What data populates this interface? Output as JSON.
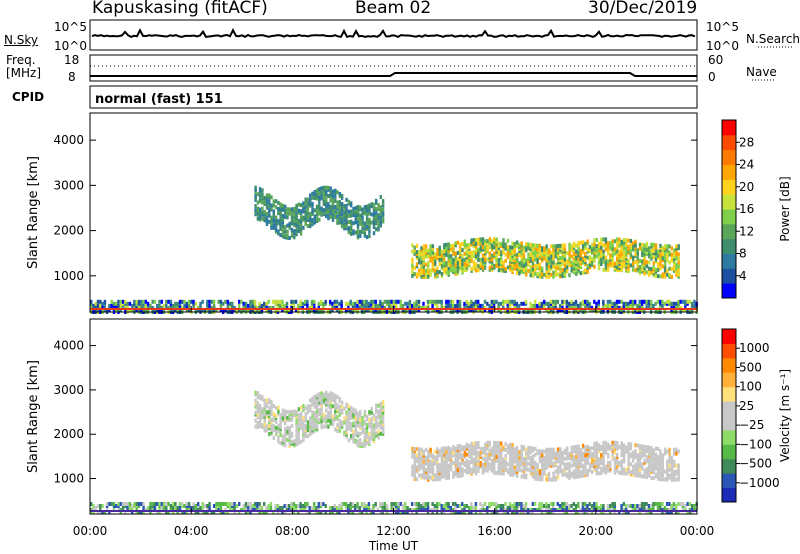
{
  "header": {
    "station": "Kapuskasing (fitACF)",
    "beam": "Beam 02",
    "date": "30/Dec/2019"
  },
  "panels": {
    "nsky_label": "N.Sky",
    "nsky_ticks": [
      "10^5",
      "10^0"
    ],
    "nsearch_label": "N.Search",
    "nsearch_ticks": [
      "10^5",
      "10^0"
    ],
    "freq_label_1": "Freq.",
    "freq_label_2": "[MHz]",
    "freq_ticks": [
      "18",
      "8"
    ],
    "nave_label": "Nave",
    "nave_ticks": [
      "60",
      "0"
    ],
    "cpid_label": "CPID",
    "cpid_text": "normal (fast) 151"
  },
  "colors": {
    "power_scale": [
      "#0000ff",
      "#1d4fa0",
      "#2f7aa0",
      "#3f8f6e",
      "#5aa55a",
      "#7ed04a",
      "#c8e23c",
      "#ffd21e",
      "#ffa500",
      "#ff7a00",
      "#ff4b00",
      "#ff0000"
    ],
    "velocity_scale": [
      "#1c2bb6",
      "#2a56b5",
      "#3f8a5a",
      "#57b947",
      "#8edb6a",
      "#c8c8c8",
      "#c8c8c8",
      "#ffe07a",
      "#ffb13a",
      "#ff8a00",
      "#ff4e00",
      "#ff0000"
    ]
  },
  "chart_data": [
    {
      "type": "heatmap",
      "name": "power",
      "xlabel": "Time UT",
      "ylabel": "Slant Range [km]",
      "x_ticks": [
        "00:00",
        "04:00",
        "08:00",
        "12:00",
        "16:00",
        "20:00",
        "00:00"
      ],
      "y_ticks": [
        1000,
        2000,
        3000,
        4000
      ],
      "ylim": [
        200,
        4600
      ],
      "colorbar": {
        "label": "Power [dB]",
        "ticks": [
          "4",
          "8",
          "12",
          "16",
          "20",
          "24",
          "28"
        ],
        "range": [
          0,
          30
        ]
      },
      "echo_regions": [
        {
          "t_start": 6.5,
          "t_end": 11.6,
          "range_km": [
            2100,
            2800
          ],
          "power_db": 12
        },
        {
          "t_start": 12.7,
          "t_end": 23.3,
          "range_km": [
            1100,
            1800
          ],
          "power_db": 18
        },
        {
          "t_start": 0.0,
          "t_end": 24.0,
          "range_km": [
            200,
            500
          ],
          "power_db": 8
        }
      ]
    },
    {
      "type": "heatmap",
      "name": "velocity",
      "xlabel": "Time UT",
      "ylabel": "Slant Range [km]",
      "x_ticks": [
        "00:00",
        "04:00",
        "08:00",
        "12:00",
        "16:00",
        "20:00",
        "00:00"
      ],
      "y_ticks": [
        1000,
        2000,
        3000,
        4000
      ],
      "ylim": [
        200,
        4600
      ],
      "colorbar": {
        "label": "Velocity [m s⁻¹]",
        "ticks": [
          "1000",
          "500",
          "100",
          "25",
          "−25",
          "−100",
          "−500",
          "−1000"
        ]
      },
      "echo_regions": [
        {
          "t_start": 6.5,
          "t_end": 11.6,
          "range_km": [
            2000,
            2800
          ],
          "velocity_ms": 0
        },
        {
          "t_start": 12.7,
          "t_end": 23.3,
          "range_km": [
            1100,
            1800
          ],
          "velocity_ms": 0
        },
        {
          "t_start": 0.0,
          "t_end": 24.0,
          "range_km": [
            200,
            500
          ],
          "velocity_ms": 150
        }
      ]
    }
  ]
}
